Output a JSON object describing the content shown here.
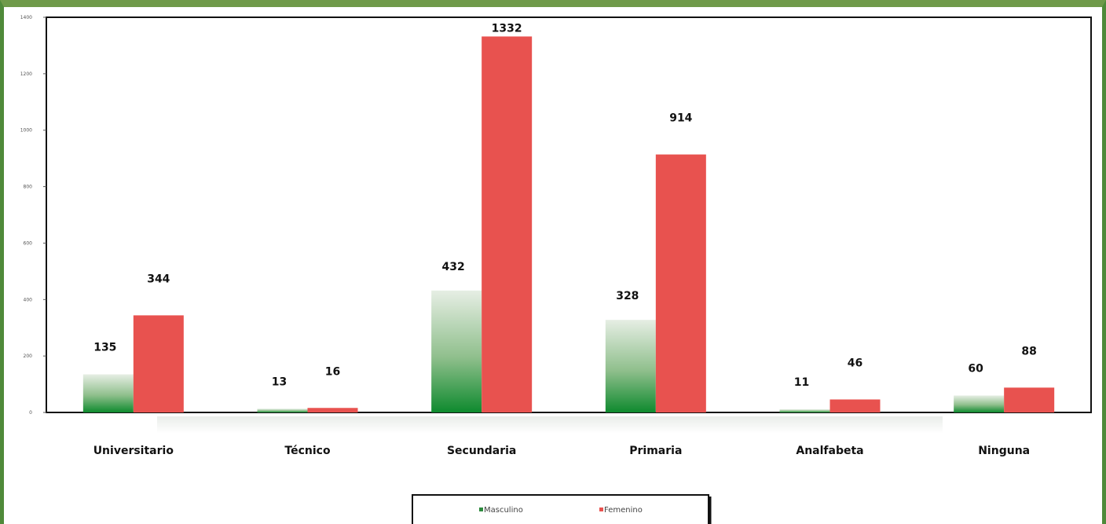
{
  "chart_data": {
    "type": "bar",
    "title": "",
    "xlabel": "",
    "ylabel": "",
    "categories": [
      "Universitario",
      "Técnico",
      "Secundaria",
      "Primaria",
      "Analfabeta",
      "Ninguna"
    ],
    "series": [
      {
        "name": "Masculino",
        "values": [
          135,
          13,
          432,
          328,
          11,
          60
        ],
        "labels": [
          "135",
          "13",
          "432",
          "328",
          "11",
          "60"
        ]
      },
      {
        "name": "Femenino",
        "values": [
          344,
          16,
          1332,
          914,
          46,
          88
        ],
        "labels": [
          "344",
          "16",
          "1332",
          "914",
          "46",
          "88"
        ]
      }
    ],
    "ylim": [
      0,
      1400
    ],
    "yticks": [
      0,
      200,
      400,
      600,
      800,
      1000,
      1200,
      1400
    ],
    "grid": false,
    "legend_position": "bottom",
    "colors": {
      "masculino_top": "#dfe9dd",
      "masculino_bottom": "#0e8a2e",
      "femenino": "#e8524f",
      "frame": "#5a8e3f"
    }
  }
}
